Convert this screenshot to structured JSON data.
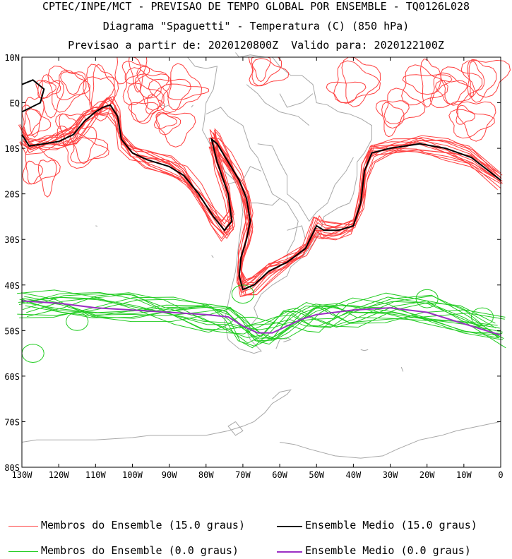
{
  "header": {
    "line1": "CPTEC/INPE/MCT - PREVISAO DE TEMPO GLOBAL POR ENSEMBLE - TQ0126L028",
    "line2": "Diagrama \"Spaguetti\" - Temperatura (C) (850 hPa)",
    "line3": "Previsao a partir de: 2020120800Z  Valido para: 2020122100Z"
  },
  "chart_data": {
    "type": "line",
    "title": "Diagrama \"Spaguetti\" - Temperatura (C) (850 hPa)",
    "xlim": [
      -130,
      0
    ],
    "ylim": [
      -80,
      10
    ],
    "x_ticks": [
      {
        "value": -130,
        "label": "130W"
      },
      {
        "value": -120,
        "label": "120W"
      },
      {
        "value": -110,
        "label": "110W"
      },
      {
        "value": -100,
        "label": "100W"
      },
      {
        "value": -90,
        "label": "90W"
      },
      {
        "value": -80,
        "label": "80W"
      },
      {
        "value": -70,
        "label": "70W"
      },
      {
        "value": -60,
        "label": "60W"
      },
      {
        "value": -50,
        "label": "50W"
      },
      {
        "value": -40,
        "label": "40W"
      },
      {
        "value": -30,
        "label": "30W"
      },
      {
        "value": -20,
        "label": "20W"
      },
      {
        "value": -10,
        "label": "10W"
      },
      {
        "value": 0,
        "label": "0"
      }
    ],
    "y_ticks": [
      {
        "value": 10,
        "label": "10N"
      },
      {
        "value": 0,
        "label": "EQ"
      },
      {
        "value": -10,
        "label": "10S"
      },
      {
        "value": -20,
        "label": "20S"
      },
      {
        "value": -30,
        "label": "30S"
      },
      {
        "value": -40,
        "label": "40S"
      },
      {
        "value": -50,
        "label": "50S"
      },
      {
        "value": -60,
        "label": "60S"
      },
      {
        "value": -70,
        "label": "70S"
      },
      {
        "value": -80,
        "label": "80S"
      }
    ],
    "series": [
      {
        "name": "Ensemble Medio (15.0 graus)",
        "color": "#000000",
        "points": [
          [
            -130,
            -7
          ],
          [
            -128,
            -9.5
          ],
          [
            -124,
            -9
          ],
          [
            -120,
            -8.5
          ],
          [
            -116,
            -7
          ],
          [
            -113,
            -4
          ],
          [
            -110,
            -2
          ],
          [
            -108,
            -1
          ],
          [
            -106,
            -0.5
          ],
          [
            -104,
            -3
          ],
          [
            -103,
            -8
          ],
          [
            -100,
            -11
          ],
          [
            -96,
            -12.5
          ],
          [
            -90,
            -14
          ],
          [
            -86,
            -16
          ],
          [
            -82,
            -20
          ],
          [
            -78,
            -25
          ],
          [
            -75,
            -28
          ],
          [
            -73,
            -26
          ],
          [
            -74,
            -20
          ],
          [
            -77,
            -13
          ],
          [
            -78.5,
            -8
          ],
          [
            -77,
            -9
          ],
          [
            -74,
            -13
          ],
          [
            -71,
            -17
          ],
          [
            -69,
            -21
          ],
          [
            -68,
            -26
          ],
          [
            -69,
            -30
          ],
          [
            -70.5,
            -34
          ],
          [
            -71,
            -38
          ],
          [
            -70,
            -41
          ],
          [
            -67,
            -40
          ],
          [
            -63,
            -37
          ],
          [
            -58,
            -35
          ],
          [
            -53,
            -32
          ],
          [
            -50,
            -27
          ],
          [
            -48,
            -28
          ],
          [
            -44,
            -28
          ],
          [
            -40,
            -27
          ],
          [
            -38,
            -22
          ],
          [
            -37,
            -15
          ],
          [
            -35,
            -11
          ],
          [
            -30,
            -10
          ],
          [
            -22,
            -9
          ],
          [
            -15,
            -10
          ],
          [
            -8,
            -12
          ],
          [
            0,
            -17
          ]
        ]
      },
      {
        "name": "Ensemble Medio (0.0 graus)",
        "color": "#9b2fc4",
        "points": [
          [
            -130,
            -43.5
          ],
          [
            -120,
            -44
          ],
          [
            -110,
            -45
          ],
          [
            -100,
            -45.5
          ],
          [
            -90,
            -46
          ],
          [
            -80,
            -46.5
          ],
          [
            -74,
            -47
          ],
          [
            -70,
            -49
          ],
          [
            -66,
            -50.5
          ],
          [
            -62,
            -50.5
          ],
          [
            -58,
            -49
          ],
          [
            -54,
            -47.5
          ],
          [
            -50,
            -46.5
          ],
          [
            -45,
            -46
          ],
          [
            -40,
            -45.5
          ],
          [
            -30,
            -45
          ],
          [
            -20,
            -46
          ],
          [
            -10,
            -48.5
          ],
          [
            0,
            -51
          ]
        ]
      }
    ],
    "legend": [
      {
        "label": "Membros do Ensemble (15.0 graus)",
        "color": "#ff4040"
      },
      {
        "label": "Ensemble Medio (15.0 graus)",
        "color": "#000000"
      },
      {
        "label": "Membros do Ensemble (0.0 graus)",
        "color": "#22cc22"
      },
      {
        "label": "Ensemble Medio (0.0 graus)",
        "color": "#9b2fc4"
      }
    ],
    "legend_position": "bottom",
    "grid": false,
    "colors": {
      "members_15": "#ff4040",
      "mean_15": "#000000",
      "members_0": "#22cc22",
      "mean_0": "#9b2fc4",
      "map": "#a8a8a8"
    }
  }
}
